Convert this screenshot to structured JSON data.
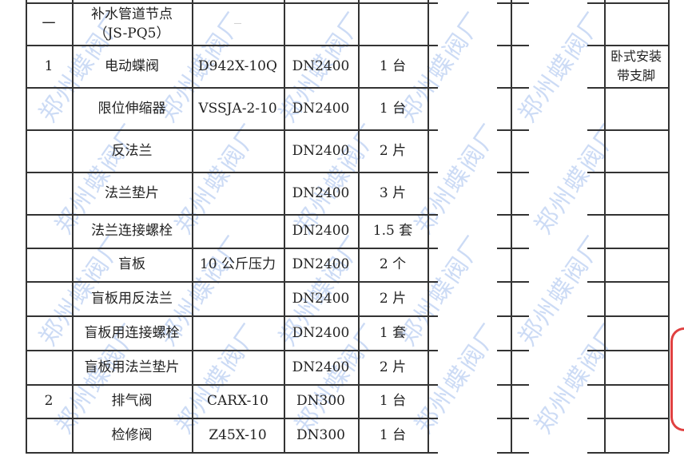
{
  "watermark": "郑州蝶阀厂",
  "colors": {
    "watermark": "#78a0e6",
    "stamp": "#e04040"
  },
  "rows": [
    {
      "no": "一",
      "name": "补水管道节点\n（JS-PQ5）",
      "model": "—",
      "size": "",
      "qty": "",
      "note": ""
    },
    {
      "no": "1",
      "name": "电动蝶阀",
      "model": "D942X-10Q",
      "size": "DN2400",
      "qty": "1 台",
      "note": "卧式安装\n带支脚"
    },
    {
      "no": "",
      "name": "限位伸缩器",
      "model": "VSSJA-2-10",
      "size": "DN2400",
      "qty": "1 台",
      "note": ""
    },
    {
      "no": "",
      "name": "反法兰",
      "model": "",
      "size": "DN2400",
      "qty": "2 片",
      "note": ""
    },
    {
      "no": "",
      "name": "法兰垫片",
      "model": "",
      "size": "DN2400",
      "qty": "3 片",
      "note": ""
    },
    {
      "no": "",
      "name": "法兰连接螺栓",
      "model": "",
      "size": "DN2400",
      "qty": "1.5 套",
      "note": ""
    },
    {
      "no": "",
      "name": "盲板",
      "model": "10 公斤压力",
      "size": "DN2400",
      "qty": "2 个",
      "note": ""
    },
    {
      "no": "",
      "name": "盲板用反法兰",
      "model": "",
      "size": "DN2400",
      "qty": "2 片",
      "note": ""
    },
    {
      "no": "",
      "name": "盲板用连接螺栓",
      "model": "",
      "size": "DN2400",
      "qty": "1 套",
      "note": ""
    },
    {
      "no": "",
      "name": "盲板用法兰垫片",
      "model": "",
      "size": "DN2400",
      "qty": "2 片",
      "note": ""
    },
    {
      "no": "2",
      "name": "排气阀",
      "model": "CARX-10",
      "size": "DN300",
      "qty": "1 台",
      "note": ""
    },
    {
      "no": "",
      "name": "检修阀",
      "model": "Z45X-10",
      "size": "DN300",
      "qty": "1 台",
      "note": ""
    }
  ]
}
